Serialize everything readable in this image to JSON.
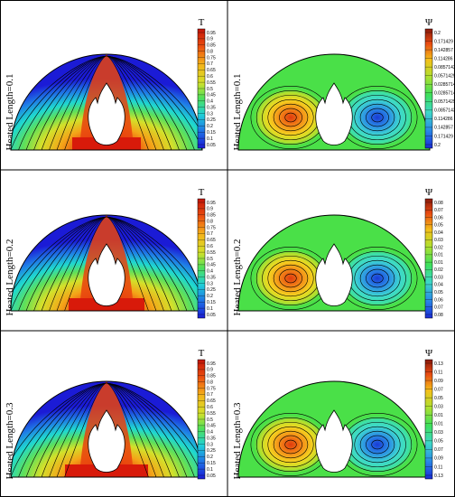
{
  "panels": [
    {
      "id": "temperature-1",
      "label": "Heated Length=0.1",
      "field": "temperature",
      "legend": {
        "title": "T",
        "ticks": [
          "0.95",
          "0.9",
          "0.85",
          "0.8",
          "0.75",
          "0.7",
          "0.65",
          "0.6",
          "0.55",
          "0.5",
          "0.45",
          "0.4",
          "0.35",
          "0.3",
          "0.25",
          "0.2",
          "0.15",
          "0.1",
          "0.05"
        ]
      }
    },
    {
      "id": "streamfunction-1",
      "label": "Heated Length=0.1",
      "field": "streamfunction",
      "legend": {
        "title": "Ψ",
        "ticks": [
          "0.2",
          "0.171429",
          "0.142857",
          "0.114286",
          "0.0857143",
          "0.0571429",
          "0.0285714",
          "0.0285714",
          "0.0571429",
          "0.0857143",
          "0.114286",
          "0.142857",
          "0.171429",
          "0.2"
        ]
      }
    },
    {
      "id": "temperature-2",
      "label": "Heated Length=0.2",
      "field": "temperature",
      "legend": {
        "title": "T",
        "ticks": [
          "0.95",
          "0.9",
          "0.85",
          "0.8",
          "0.75",
          "0.7",
          "0.65",
          "0.6",
          "0.55",
          "0.5",
          "0.45",
          "0.4",
          "0.35",
          "0.3",
          "0.25",
          "0.2",
          "0.15",
          "0.1",
          "0.05"
        ]
      }
    },
    {
      "id": "streamfunction-2",
      "label": "Heated Length=0.2",
      "field": "streamfunction",
      "legend": {
        "title": "Ψ",
        "ticks": [
          "0.08",
          "0.07",
          "0.06",
          "0.05",
          "0.04",
          "0.03",
          "0.02",
          "0.01",
          "0.01",
          "0.02",
          "0.03",
          "0.04",
          "0.05",
          "0.06",
          "0.07",
          "0.08"
        ]
      }
    },
    {
      "id": "temperature-3",
      "label": "Heated Length=0.3",
      "field": "temperature",
      "legend": {
        "title": "T",
        "ticks": [
          "0.95",
          "0.9",
          "0.85",
          "0.8",
          "0.75",
          "0.7",
          "0.65",
          "0.6",
          "0.55",
          "0.5",
          "0.45",
          "0.4",
          "0.35",
          "0.3",
          "0.25",
          "0.2",
          "0.15",
          "0.1",
          "0.05"
        ]
      }
    },
    {
      "id": "streamfunction-3",
      "label": "Heated Length=0.3",
      "field": "streamfunction",
      "legend": {
        "title": "Ψ",
        "ticks": [
          "0.13",
          "0.11",
          "0.09",
          "0.07",
          "0.05",
          "0.03",
          "0.01",
          "0.01",
          "0.03",
          "0.05",
          "0.07",
          "0.09",
          "0.11",
          "0.13"
        ]
      }
    }
  ],
  "colors": {
    "temperature_scale": [
      "#1b1bd6",
      "#1f6fe6",
      "#1fb8e6",
      "#1fe0c0",
      "#3ee07a",
      "#8ee03a",
      "#d4e02a",
      "#f4c01a",
      "#f08a14",
      "#e8400e",
      "#d81a0a"
    ],
    "streamfunction_scale": [
      "#8b1a0a",
      "#e84a12",
      "#f09a1a",
      "#f4d820",
      "#a8e030",
      "#3ee05a",
      "#3ee0a0",
      "#3ec8e0",
      "#2a8ae6",
      "#1a3ad6"
    ],
    "plateau": "#4ae048",
    "contour_line": "#000000",
    "frame_border": "#000000"
  }
}
